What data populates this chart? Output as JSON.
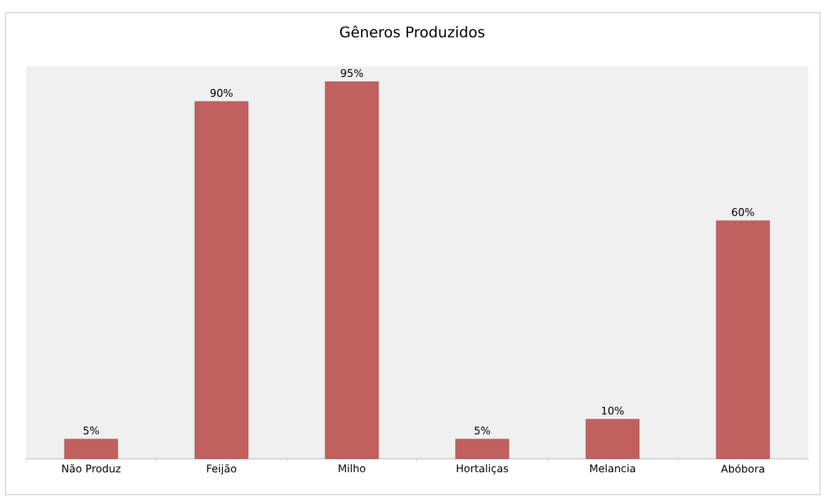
{
  "chart_data": {
    "type": "bar",
    "title": "Gêneros Produzidos",
    "categories": [
      "Não Produz",
      "Feijão",
      "Milho",
      "Hortaliças",
      "Melancia",
      "Abóbora"
    ],
    "values": [
      5,
      90,
      95,
      5,
      10,
      60
    ],
    "value_labels": [
      "5%",
      "90%",
      "95%",
      "5%",
      "10%",
      "60%"
    ],
    "color": "#c0605f"
  }
}
